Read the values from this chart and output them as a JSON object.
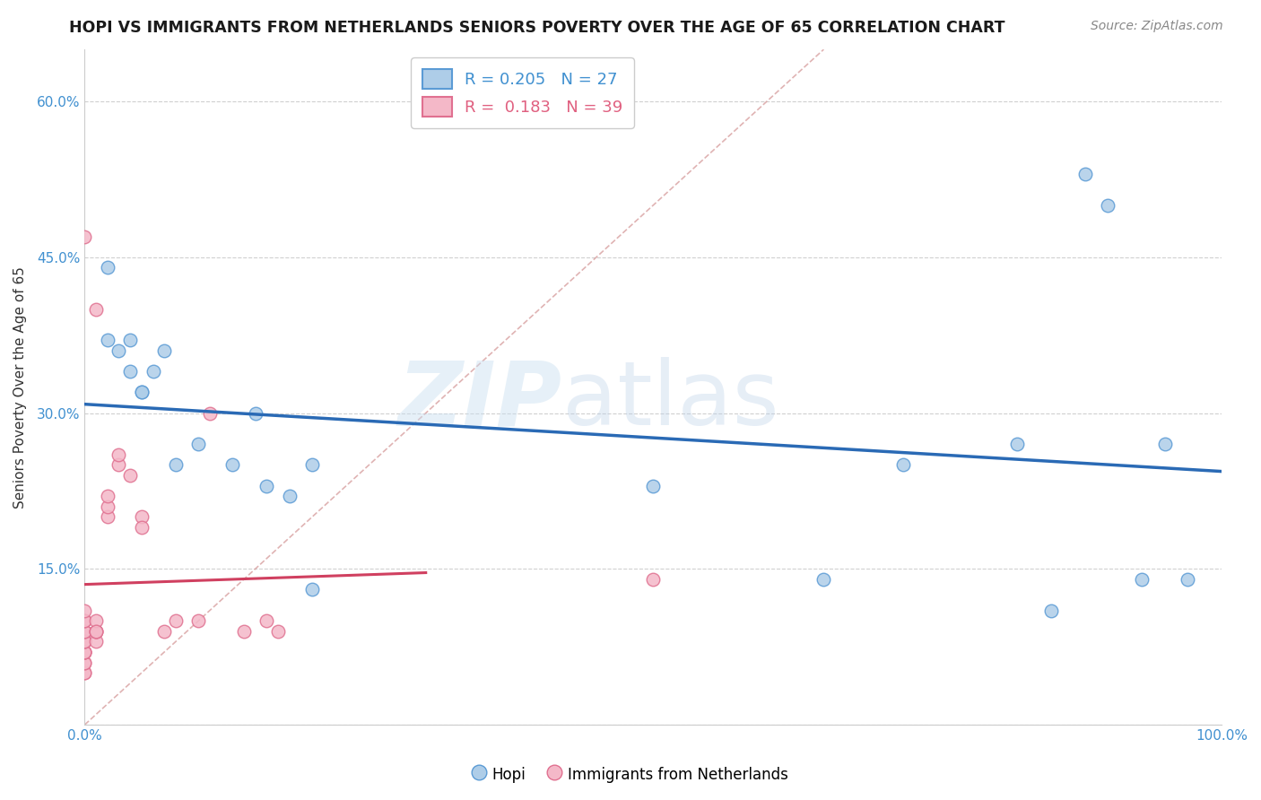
{
  "title": "HOPI VS IMMIGRANTS FROM NETHERLANDS SENIORS POVERTY OVER THE AGE OF 65 CORRELATION CHART",
  "source": "Source: ZipAtlas.com",
  "ylabel": "Seniors Poverty Over the Age of 65",
  "xlim": [
    0,
    1.0
  ],
  "ylim": [
    0,
    0.65
  ],
  "watermark_zip": "ZIP",
  "watermark_atlas": "atlas",
  "hopi_R": 0.205,
  "hopi_N": 27,
  "netherlands_R": 0.183,
  "netherlands_N": 39,
  "hopi_color": "#aecde8",
  "hopi_edge_color": "#5b9bd5",
  "netherlands_color": "#f4b8c8",
  "netherlands_edge_color": "#e07090",
  "hopi_line_color": "#2a6ab5",
  "netherlands_line_color": "#d04060",
  "ref_line_color": "#d8a0a0",
  "hopi_scatter_x": [
    0.02,
    0.02,
    0.03,
    0.04,
    0.04,
    0.05,
    0.05,
    0.06,
    0.07,
    0.08,
    0.1,
    0.13,
    0.15,
    0.16,
    0.18,
    0.2,
    0.5,
    0.65,
    0.72,
    0.82,
    0.85,
    0.88,
    0.9,
    0.93,
    0.95,
    0.97,
    0.2
  ],
  "hopi_scatter_y": [
    0.44,
    0.37,
    0.36,
    0.37,
    0.34,
    0.32,
    0.32,
    0.34,
    0.36,
    0.25,
    0.27,
    0.25,
    0.3,
    0.23,
    0.22,
    0.25,
    0.23,
    0.14,
    0.25,
    0.27,
    0.11,
    0.53,
    0.5,
    0.14,
    0.27,
    0.14,
    0.13
  ],
  "netherlands_scatter_x": [
    0.0,
    0.0,
    0.0,
    0.0,
    0.0,
    0.0,
    0.0,
    0.0,
    0.0,
    0.0,
    0.0,
    0.0,
    0.0,
    0.0,
    0.0,
    0.0,
    0.0,
    0.01,
    0.01,
    0.01,
    0.01,
    0.01,
    0.01,
    0.02,
    0.02,
    0.02,
    0.03,
    0.03,
    0.04,
    0.05,
    0.05,
    0.07,
    0.08,
    0.1,
    0.11,
    0.14,
    0.16,
    0.17,
    0.5
  ],
  "netherlands_scatter_y": [
    0.05,
    0.05,
    0.06,
    0.06,
    0.07,
    0.07,
    0.07,
    0.07,
    0.08,
    0.08,
    0.08,
    0.09,
    0.09,
    0.1,
    0.1,
    0.11,
    0.47,
    0.08,
    0.09,
    0.09,
    0.1,
    0.4,
    0.09,
    0.2,
    0.21,
    0.22,
    0.25,
    0.26,
    0.24,
    0.2,
    0.19,
    0.09,
    0.1,
    0.1,
    0.3,
    0.09,
    0.1,
    0.09,
    0.14
  ],
  "background_color": "#ffffff",
  "grid_color": "#d0d0d0"
}
